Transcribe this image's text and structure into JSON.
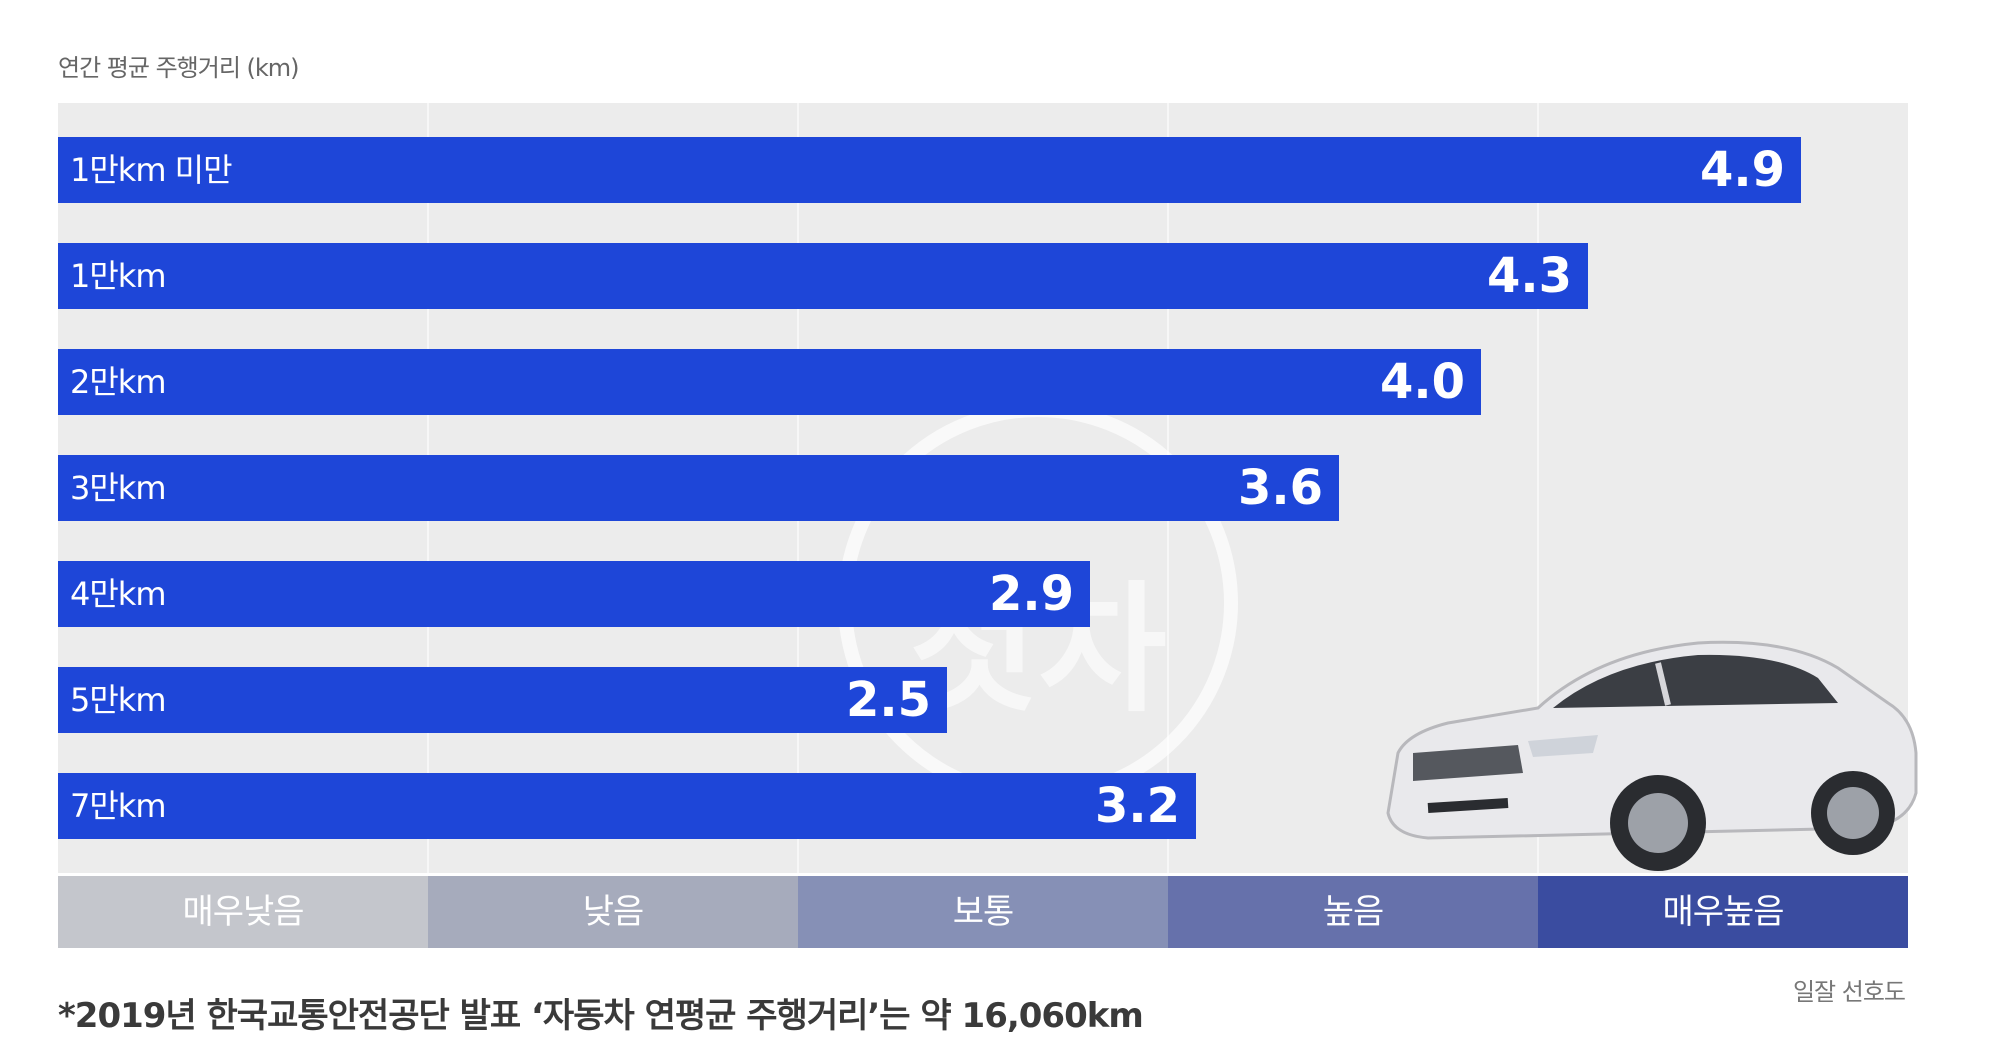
{
  "chart_data": {
    "type": "bar",
    "orientation": "horizontal",
    "ylabel": "연간 평균 주행거리 (km)",
    "categories": [
      "1만km 미만",
      "1만km",
      "2만km",
      "3만km",
      "4만km",
      "5만km",
      "7만km"
    ],
    "values": [
      4.9,
      4.3,
      4.0,
      3.6,
      2.9,
      2.5,
      3.2
    ],
    "xlim": [
      0,
      5.2
    ],
    "bar_color": "#1e46d8",
    "scale_bands": [
      {
        "label": "매우낮음",
        "color": "#c4c6cc"
      },
      {
        "label": "낮음",
        "color": "#a6abbc"
      },
      {
        "label": "보통",
        "color": "#8690b6"
      },
      {
        "label": "높음",
        "color": "#6671ab"
      },
      {
        "label": "매우높음",
        "color": "#3a4ca0"
      }
    ],
    "footnote": "*2019년 한국교통안전공단 발표 ‘자동차 연평균 주행거리’는 약 16,060km",
    "credit": "일잘 선호도",
    "watermark": "첫차"
  }
}
